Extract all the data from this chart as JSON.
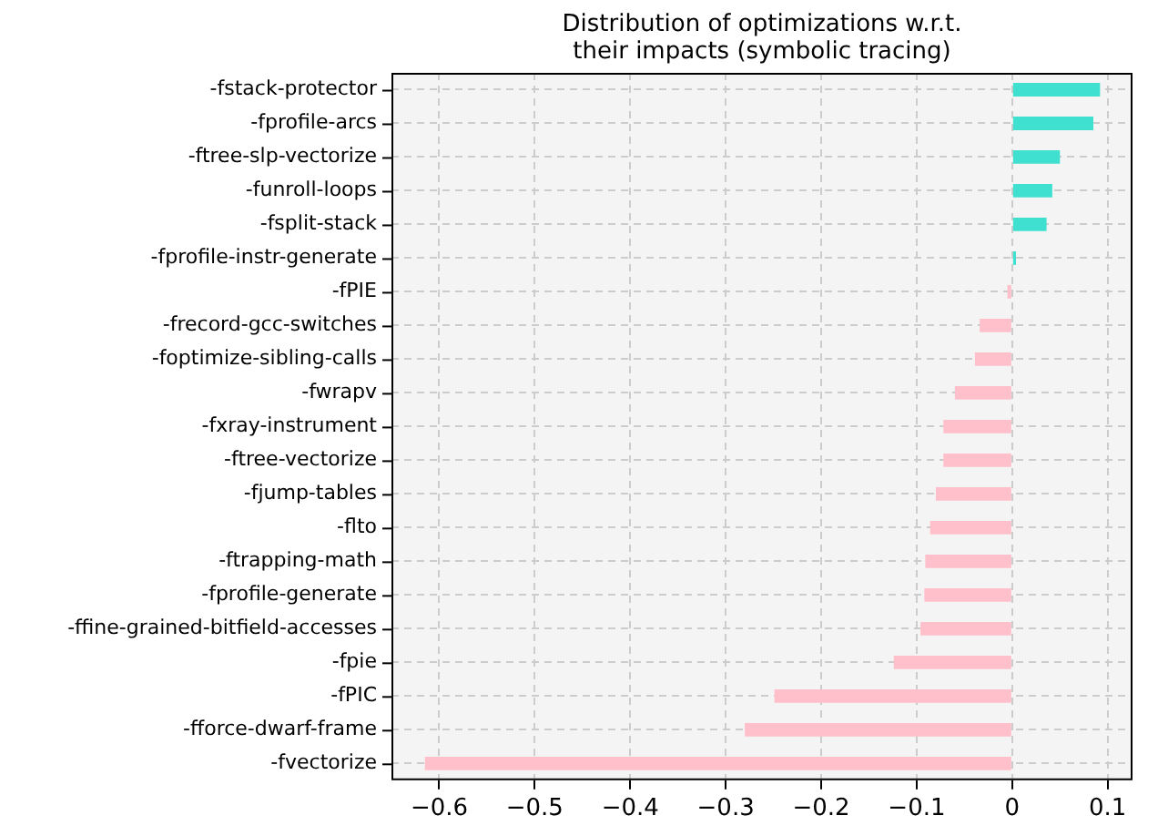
{
  "chart_data": {
    "type": "bar",
    "orientation": "horizontal",
    "title": "Distribution of optimizations w.r.t.\ntheir impacts (symbolic tracing)",
    "categories": [
      "-fstack-protector",
      "-fprofile-arcs",
      "-ftree-slp-vectorize",
      "-funroll-loops",
      "-fsplit-stack",
      "-fprofile-instr-generate",
      "-fPIE",
      "-frecord-gcc-switches",
      "-foptimize-sibling-calls",
      "-fwrapv",
      "-fxray-instrument",
      "-ftree-vectorize",
      "-fjump-tables",
      "-flto",
      "-ftrapping-math",
      "-fprofile-generate",
      "-ffine-grained-bitfield-accesses",
      "-fpie",
      "-fPIC",
      "-fforce-dwarf-frame",
      "-fvectorize"
    ],
    "values": [
      0.092,
      0.085,
      0.05,
      0.042,
      0.036,
      0.004,
      -0.005,
      -0.034,
      -0.039,
      -0.06,
      -0.072,
      -0.072,
      -0.08,
      -0.086,
      -0.091,
      -0.092,
      -0.096,
      -0.124,
      -0.249,
      -0.28,
      -0.615
    ],
    "colors": [
      "#40e0d0",
      "#40e0d0",
      "#40e0d0",
      "#40e0d0",
      "#40e0d0",
      "#40e0d0",
      "#ffc0cb",
      "#ffc0cb",
      "#ffc0cb",
      "#ffc0cb",
      "#ffc0cb",
      "#ffc0cb",
      "#ffc0cb",
      "#ffc0cb",
      "#ffc0cb",
      "#ffc0cb",
      "#ffc0cb",
      "#ffc0cb",
      "#ffc0cb",
      "#ffc0cb",
      "#ffc0cb"
    ],
    "xlim": [
      -0.65,
      0.126
    ],
    "xticks": [
      -0.6,
      -0.5,
      -0.4,
      -0.3,
      -0.2,
      -0.1,
      0.0,
      0.1
    ],
    "grid": true,
    "legend": false
  }
}
